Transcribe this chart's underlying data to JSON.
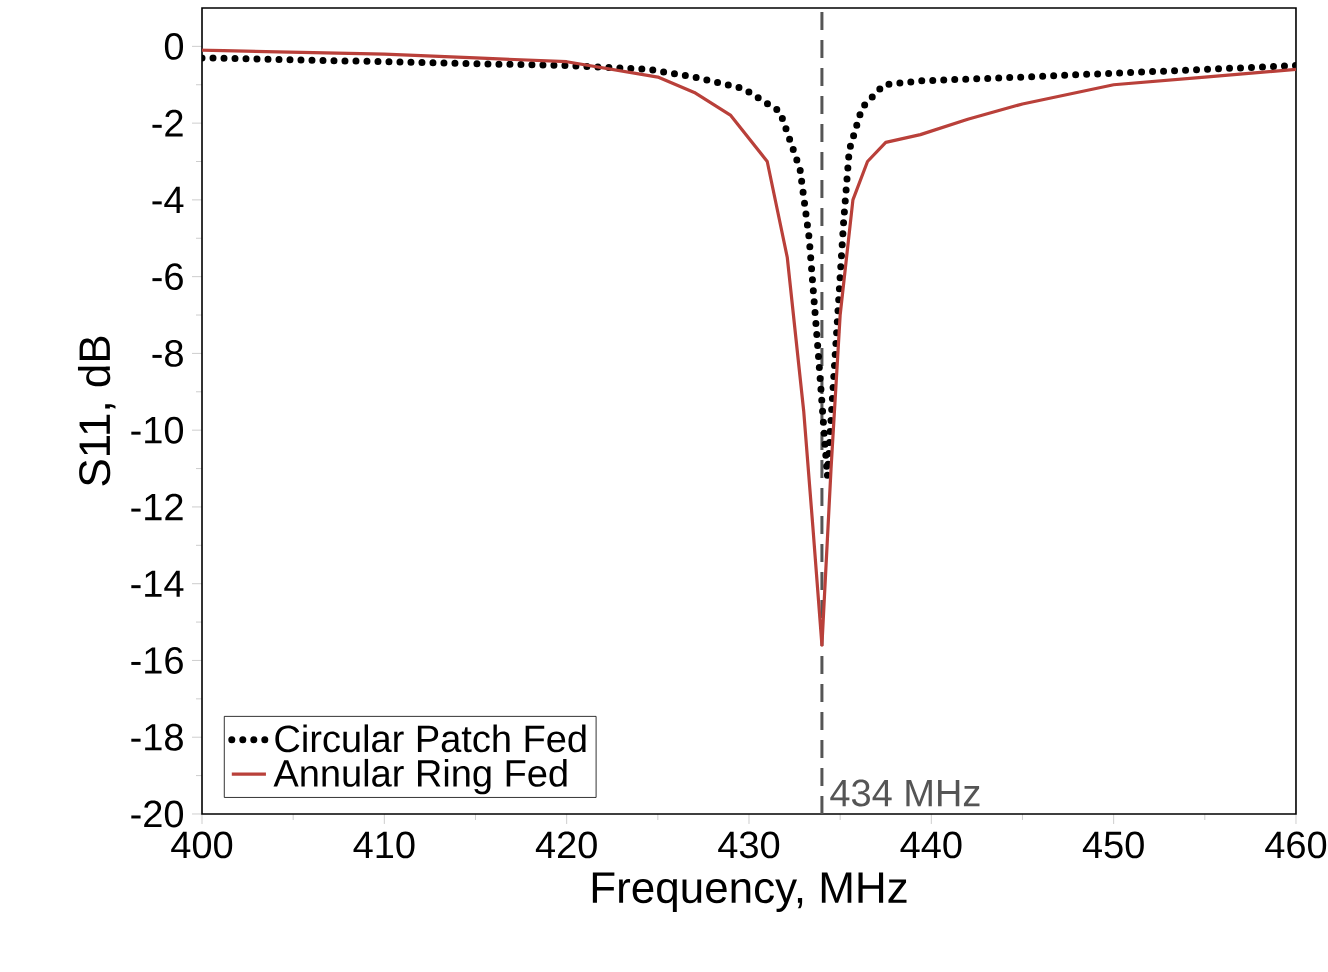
{
  "chart_data": {
    "type": "line",
    "xlabel": "Frequency, MHz",
    "ylabel": "S11, dB",
    "xlim": [
      400,
      460
    ],
    "ylim": [
      -20,
      1
    ],
    "xticks": [
      400,
      410,
      420,
      430,
      440,
      450,
      460
    ],
    "yticks": [
      -20,
      -18,
      -16,
      -14,
      -12,
      -10,
      -8,
      -6,
      -4,
      -2,
      0
    ],
    "grid": false,
    "legend": "bottom left",
    "ref_lines": [
      {
        "axis": "x",
        "value": 434,
        "label": "434 MHz",
        "color": "#555555",
        "line_style": "dashed"
      }
    ],
    "series": [
      {
        "name": "Circular Patch Fed",
        "color": "#000000",
        "line_style": "dotted",
        "x": [
          400,
          410,
          420,
          424.5,
          427,
          429.7,
          431.7,
          432.8,
          433.3,
          433.8,
          434.3,
          434.8,
          435.2,
          435.5,
          436.2,
          437.4,
          439.4,
          445,
          450,
          455,
          460
        ],
        "values": [
          -0.3,
          -0.4,
          -0.5,
          -0.6,
          -0.8,
          -1.1,
          -1.7,
          -3.2,
          -5.0,
          -8.0,
          -11.2,
          -7.5,
          -4.5,
          -2.7,
          -1.6,
          -1.0,
          -0.9,
          -0.8,
          -0.7,
          -0.6,
          -0.5
        ]
      },
      {
        "name": "Annular Ring Fed",
        "color": "#b9403a",
        "line_style": "solid",
        "x": [
          400,
          410,
          415,
          420,
          425,
          427,
          429,
          431,
          432.1,
          433,
          433.5,
          434,
          434.5,
          435,
          435.7,
          436.5,
          437.5,
          439.4,
          442,
          445,
          450,
          455,
          460
        ],
        "values": [
          -0.1,
          -0.2,
          -0.3,
          -0.4,
          -0.8,
          -1.2,
          -1.8,
          -3.0,
          -5.5,
          -9.5,
          -12.5,
          -15.6,
          -11.0,
          -7.0,
          -4.0,
          -3.0,
          -2.5,
          -2.3,
          -1.9,
          -1.5,
          -1.0,
          -0.8,
          -0.6
        ]
      }
    ]
  }
}
